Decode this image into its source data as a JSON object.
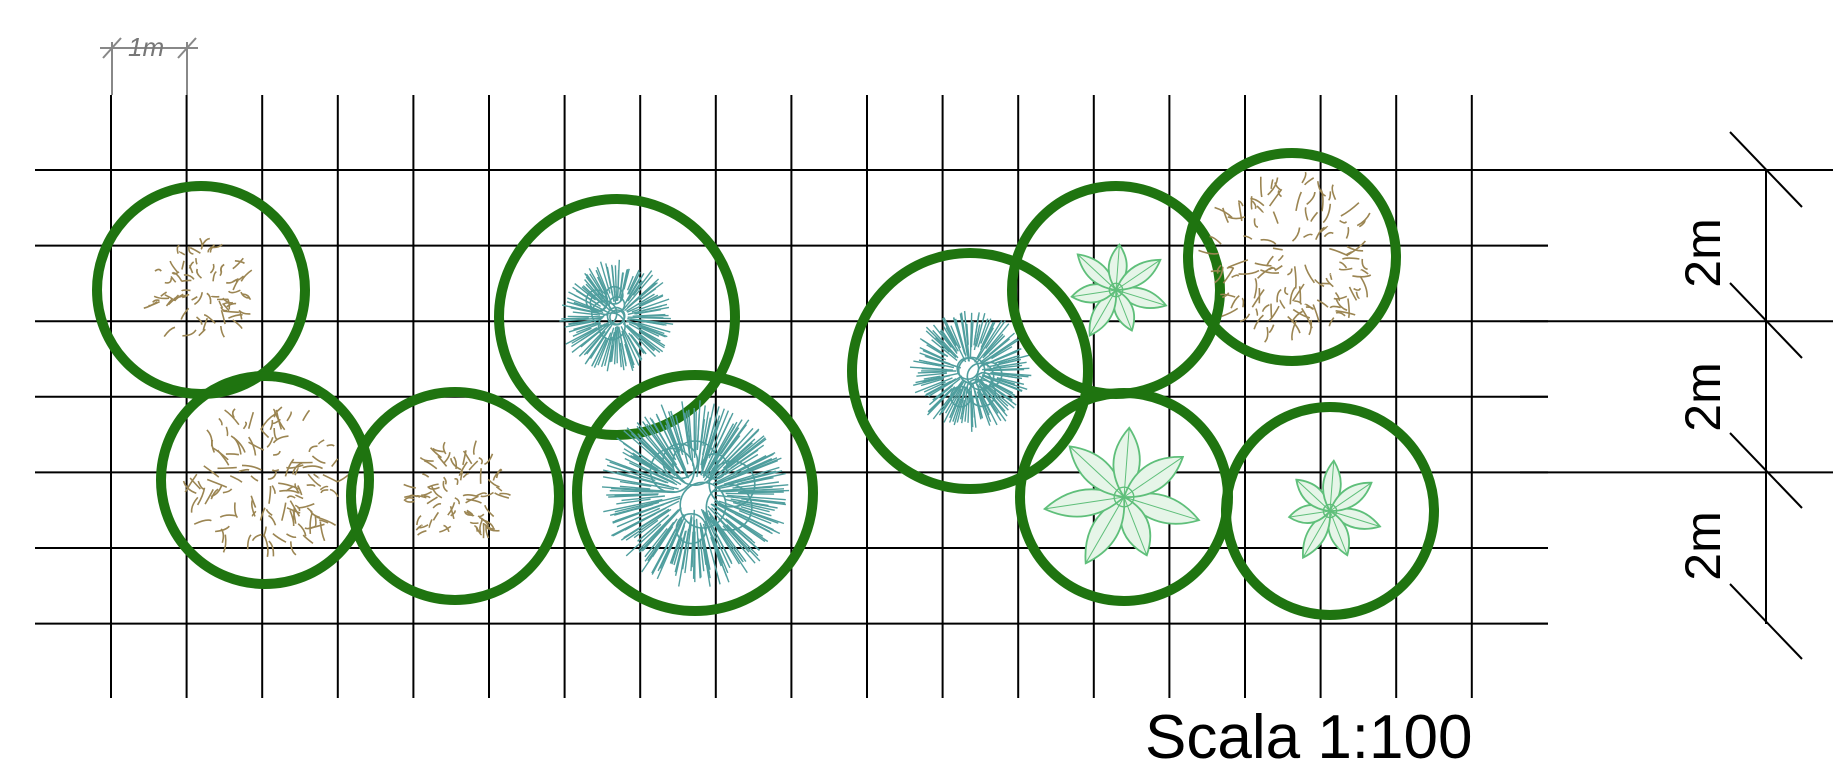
{
  "scale_label": "Scala 1:100",
  "unit_label": "1m",
  "dimension_labels": [
    "2m",
    "2m",
    "2m"
  ],
  "colors": {
    "canopy_ring": "#1f7410",
    "grid": "#000000",
    "brown_shrub": "#9b8552",
    "teal_conifer": "#4f9e9e",
    "green_leafy": "#5fbf7a"
  },
  "plants": [
    {
      "type": "brown_shrub"
    },
    {
      "type": "brown_shrub"
    },
    {
      "type": "brown_shrub"
    },
    {
      "type": "teal_conifer"
    },
    {
      "type": "teal_conifer"
    },
    {
      "type": "teal_conifer"
    },
    {
      "type": "green_leafy"
    },
    {
      "type": "brown_shrub"
    },
    {
      "type": "green_leafy"
    },
    {
      "type": "green_leafy"
    }
  ]
}
